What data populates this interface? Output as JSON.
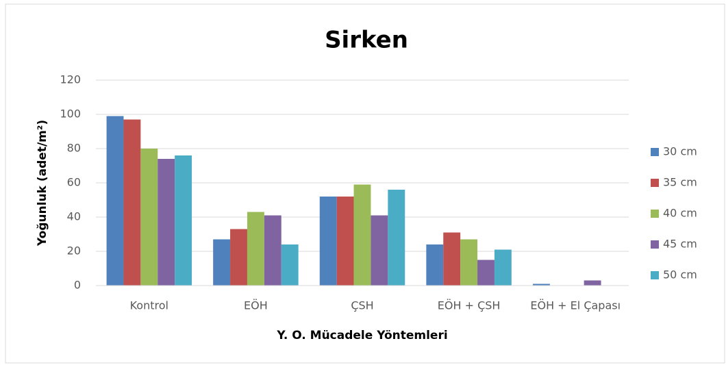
{
  "chart_data": {
    "type": "bar",
    "title": "Sirken",
    "xlabel": "Y. O. Mücadele Yöntemleri",
    "ylabel": "Yoğunluk (adet/m²)",
    "categories": [
      "Kontrol",
      "EÖH",
      "ÇSH",
      "EÖH + ÇSH",
      "EÖH + El Çapası"
    ],
    "series": [
      {
        "name": "30 cm",
        "color": "#4f81bd",
        "values": [
          99,
          27,
          52,
          24,
          1
        ]
      },
      {
        "name": "35 cm",
        "color": "#c0504d",
        "values": [
          97,
          33,
          52,
          31,
          0
        ]
      },
      {
        "name": "40 cm",
        "color": "#9bbb59",
        "values": [
          80,
          43,
          59,
          27,
          0
        ]
      },
      {
        "name": "45 cm",
        "color": "#8064a2",
        "values": [
          74,
          41,
          41,
          15,
          3
        ]
      },
      {
        "name": "50 cm",
        "color": "#4bacc6",
        "values": [
          76,
          24,
          56,
          21,
          0
        ]
      }
    ],
    "ylim": [
      0,
      120
    ],
    "yticks": [
      0,
      20,
      40,
      60,
      80,
      100,
      120
    ],
    "grid": true,
    "legend": "right"
  }
}
